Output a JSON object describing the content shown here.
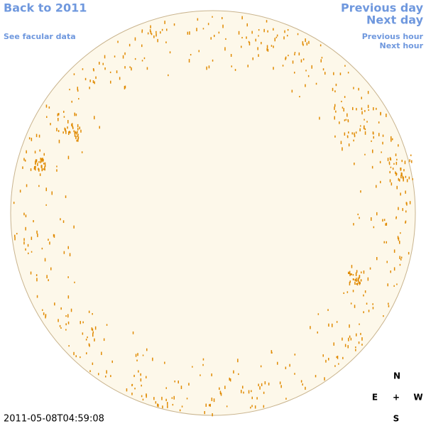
{
  "header": {
    "back": "Back to 2011",
    "see_data": "See facular data",
    "prev_day": "Previous day",
    "next_day": "Next day",
    "prev_hour": "Previous hour",
    "next_hour": "Next hour"
  },
  "timestamp": "2011-05-08T04:59:08",
  "compass": {
    "north": "N",
    "east": "E",
    "center": "+",
    "west": "W",
    "south": "S"
  }
}
